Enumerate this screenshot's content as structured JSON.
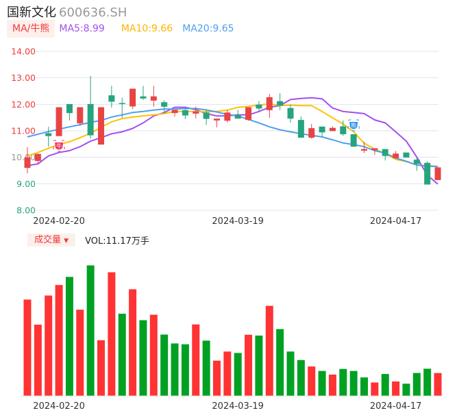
{
  "header": {
    "name": "国新文化",
    "code": "600636.SH"
  },
  "ma_legend": {
    "tag": "MA/牛熊",
    "ma5": "MA5:8.99",
    "ma10": "MA10:9.66",
    "ma20": "MA20:9.65"
  },
  "volume_legend": {
    "tag": "成交量",
    "arrow": "▼",
    "value": "VOL:11.17万手"
  },
  "colors": {
    "up": "#e84444",
    "down": "#26a47f",
    "vol_up": "#ff3333",
    "vol_down": "#00a123",
    "ma5": "#a24ff0",
    "ma10": "#ffc107",
    "ma20": "#4f9ef0",
    "grid": "#dfe3ee"
  },
  "markers": [
    {
      "index": 3,
      "type": "bull",
      "label": "牛",
      "icon": "bull-badge-icon"
    },
    {
      "index": 31,
      "type": "bear",
      "label": "熊",
      "icon": "bear-badge-icon"
    }
  ],
  "chart_data": [
    {
      "type": "candlestick",
      "title": "国新文化 600636.SH",
      "ylim": [
        8,
        14
      ],
      "yticks": [
        "14.00",
        "13.00",
        "12.00",
        "11.00",
        "10.00",
        "9.00",
        "8.00"
      ],
      "ytick_values": [
        14,
        13,
        12,
        11,
        10,
        9,
        8
      ],
      "xtick_labels": [
        {
          "index": 3,
          "label": "2024-02-20"
        },
        {
          "index": 20,
          "label": "2024-03-19"
        },
        {
          "index": 35,
          "label": "2024-04-17"
        }
      ],
      "grid": true,
      "ohlc": [
        [
          9.6,
          10.39,
          9.39,
          10.0
        ],
        [
          9.86,
          10.13,
          9.73,
          10.13
        ],
        [
          10.91,
          11.15,
          10.4,
          10.8
        ],
        [
          10.8,
          11.89,
          10.8,
          11.89
        ],
        [
          12.01,
          12.01,
          11.39,
          11.67
        ],
        [
          11.28,
          11.89,
          11.19,
          11.89
        ],
        [
          12.01,
          13.07,
          10.7,
          10.83
        ],
        [
          10.48,
          11.89,
          10.48,
          11.89
        ],
        [
          12.34,
          12.7,
          11.88,
          12.1
        ],
        [
          12.05,
          12.25,
          11.49,
          12.01
        ],
        [
          11.92,
          12.59,
          11.82,
          12.59
        ],
        [
          12.3,
          12.7,
          12.16,
          12.22
        ],
        [
          12.14,
          12.7,
          11.91,
          12.3
        ],
        [
          12.08,
          12.16,
          11.65,
          11.91
        ],
        [
          11.67,
          11.79,
          11.53,
          11.79
        ],
        [
          11.78,
          11.84,
          11.44,
          11.58
        ],
        [
          11.65,
          11.91,
          11.47,
          11.73
        ],
        [
          11.69,
          11.78,
          11.23,
          11.45
        ],
        [
          11.39,
          11.46,
          11.13,
          11.46
        ],
        [
          11.38,
          11.78,
          11.32,
          11.69
        ],
        [
          11.6,
          11.79,
          11.46,
          11.46
        ],
        [
          11.41,
          11.89,
          11.38,
          11.89
        ],
        [
          11.99,
          12.12,
          11.72,
          11.84
        ],
        [
          11.78,
          12.4,
          11.49,
          12.27
        ],
        [
          12.12,
          12.42,
          11.78,
          11.95
        ],
        [
          11.86,
          11.99,
          11.31,
          11.46
        ],
        [
          11.41,
          11.54,
          10.74,
          10.74
        ],
        [
          10.74,
          11.26,
          10.7,
          11.1
        ],
        [
          11.16,
          11.16,
          10.77,
          10.94
        ],
        [
          10.99,
          11.17,
          10.99,
          11.11
        ],
        [
          11.17,
          11.39,
          10.81,
          10.87
        ],
        [
          10.87,
          10.87,
          10.4,
          10.4
        ],
        [
          10.25,
          10.59,
          10.16,
          10.31
        ],
        [
          10.27,
          10.34,
          10.09,
          10.34
        ],
        [
          10.31,
          10.31,
          9.88,
          10.05
        ],
        [
          9.97,
          10.24,
          9.97,
          10.14
        ],
        [
          10.18,
          10.18,
          9.99,
          9.99
        ],
        [
          9.91,
          9.98,
          9.49,
          9.75
        ],
        [
          9.79,
          9.85,
          8.97,
          8.97
        ],
        [
          9.14,
          9.62,
          9.14,
          9.62
        ]
      ],
      "series": [
        {
          "name": "MA5",
          "values": [
            9.68,
            9.75,
            10.05,
            10.18,
            10.25,
            10.4,
            10.61,
            10.74,
            10.89,
            10.96,
            11.09,
            11.3,
            11.56,
            11.69,
            11.89,
            11.89,
            11.8,
            11.65,
            11.56,
            11.56,
            11.6,
            11.6,
            11.73,
            11.89,
            11.95,
            12.18,
            12.22,
            12.25,
            12.21,
            11.86,
            11.73,
            11.69,
            11.65,
            11.41,
            11.3,
            10.96,
            10.61,
            10.01,
            9.32,
            8.99
          ]
        },
        {
          "name": "MA10",
          "values": [
            10.05,
            10.18,
            10.34,
            10.48,
            10.59,
            10.74,
            10.91,
            11.13,
            11.34,
            11.46,
            11.52,
            11.56,
            11.6,
            11.65,
            11.73,
            11.73,
            11.73,
            11.72,
            11.73,
            11.78,
            11.89,
            11.92,
            11.97,
            12.02,
            11.95,
            11.97,
            11.95,
            11.95,
            11.73,
            11.49,
            11.26,
            10.96,
            10.53,
            10.31,
            10.14,
            9.92,
            9.84,
            9.71,
            9.68,
            9.66
          ]
        },
        {
          "name": "MA20",
          "values": [
            10.77,
            10.87,
            10.97,
            11.06,
            11.15,
            11.23,
            11.32,
            11.39,
            11.52,
            11.6,
            11.69,
            11.73,
            11.78,
            11.82,
            11.82,
            11.84,
            11.84,
            11.79,
            11.71,
            11.62,
            11.56,
            11.43,
            11.3,
            11.15,
            11.04,
            10.96,
            10.89,
            10.83,
            10.77,
            10.66,
            10.54,
            10.48,
            10.4,
            10.25,
            10.16,
            9.97,
            9.85,
            9.71,
            9.66,
            9.65
          ]
        }
      ]
    },
    {
      "type": "bar",
      "title": "成交量",
      "unit": "万手",
      "values": [
        47.5,
        35.1,
        49.5,
        54.7,
        58.7,
        42.5,
        64.4,
        27.4,
        61.0,
        40.5,
        52.6,
        37.3,
        40.0,
        30.2,
        25.8,
        25.4,
        35.2,
        27.2,
        17.3,
        21.8,
        21.1,
        30.1,
        29.7,
        44.4,
        32.9,
        21.8,
        17.6,
        14.4,
        12.2,
        10.4,
        13.2,
        12.2,
        9.0,
        6.5,
        10.7,
        7.0,
        5.9,
        11.2,
        13.3,
        11.17
      ],
      "direction": [
        "up",
        "up",
        "up",
        "up",
        "down",
        "up",
        "down",
        "up",
        "up",
        "down",
        "up",
        "down",
        "up",
        "down",
        "down",
        "down",
        "up",
        "down",
        "up",
        "up",
        "down",
        "up",
        "down",
        "up",
        "down",
        "down",
        "down",
        "up",
        "down",
        "up",
        "down",
        "down",
        "down",
        "up",
        "down",
        "up",
        "down",
        "down",
        "down",
        "up"
      ],
      "xtick_labels": [
        {
          "index": 3,
          "label": "2024-02-20"
        },
        {
          "index": 20,
          "label": "2024-03-19"
        },
        {
          "index": 35,
          "label": "2024-04-17"
        }
      ]
    }
  ]
}
